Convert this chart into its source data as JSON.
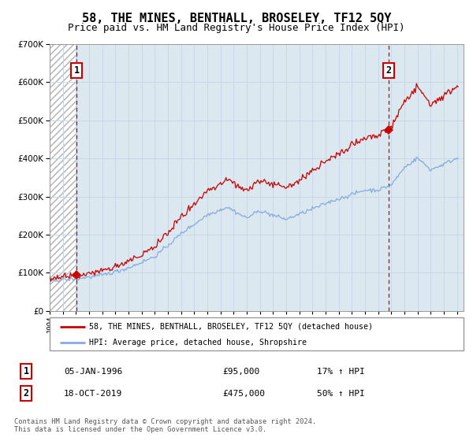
{
  "title": "58, THE MINES, BENTHALL, BROSELEY, TF12 5QY",
  "subtitle": "Price paid vs. HM Land Registry's House Price Index (HPI)",
  "title_fontsize": 11,
  "subtitle_fontsize": 9,
  "ylim": [
    0,
    700000
  ],
  "yticks": [
    0,
    100000,
    200000,
    300000,
    400000,
    500000,
    600000,
    700000
  ],
  "ytick_labels": [
    "£0",
    "£100K",
    "£200K",
    "£300K",
    "£400K",
    "£500K",
    "£600K",
    "£700K"
  ],
  "xlim_start": 1994.0,
  "xlim_end": 2025.5,
  "sale1_date": 1996.04,
  "sale1_price": 95000,
  "sale2_date": 2019.8,
  "sale2_price": 475000,
  "property_line_color": "#cc0000",
  "hpi_line_color": "#88aadd",
  "dashed_vline_color": "#cc0000",
  "grid_color": "#c8d8e8",
  "background_plot": "#dce8f0",
  "legend_label_property": "58, THE MINES, BENTHALL, BROSELEY, TF12 5QY (detached house)",
  "legend_label_hpi": "HPI: Average price, detached house, Shropshire",
  "footer": "Contains HM Land Registry data © Crown copyright and database right 2024.\nThis data is licensed under the Open Government Licence v3.0."
}
